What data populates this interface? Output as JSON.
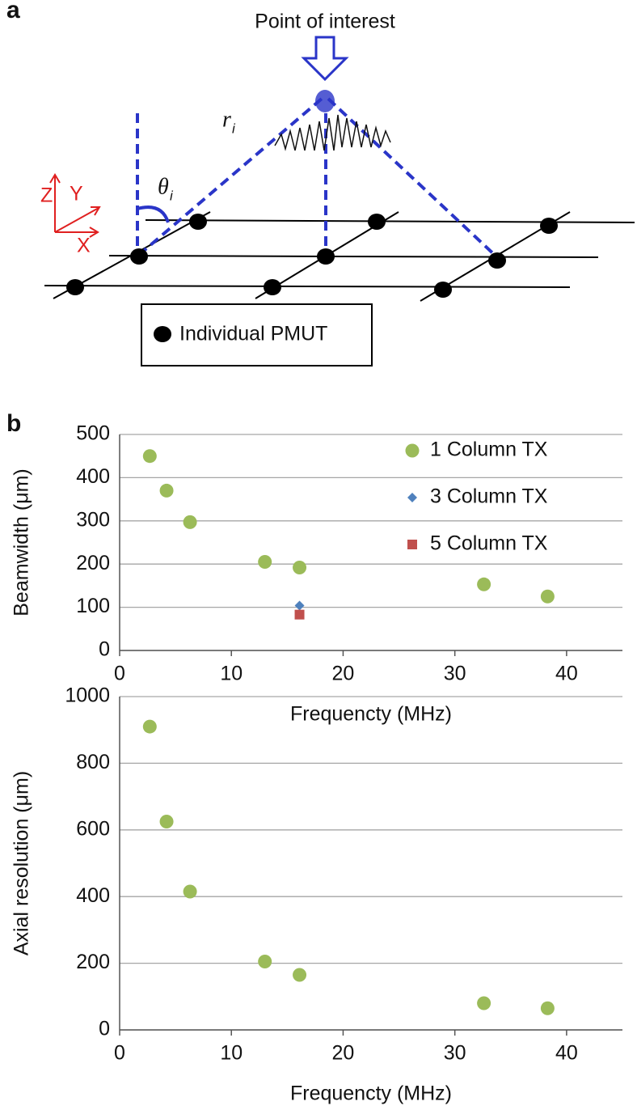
{
  "panel_labels": [
    "a",
    "b"
  ],
  "diagram": {
    "title": "Point of interest",
    "distance": {
      "symbol": "r",
      "subscript": "i"
    },
    "angle": {
      "symbol": "θ",
      "subscript": "i"
    },
    "axes": [
      "Z",
      "Y",
      "X"
    ],
    "legend": "Individual PMUT"
  },
  "chart_data": [
    {
      "type": "scatter",
      "xlabel": "Frequencty (MHz)",
      "ylabel": "Beamwidth (μm)",
      "xlim": [
        0,
        45
      ],
      "xticks": [
        0,
        10,
        20,
        30,
        40
      ],
      "ylim": [
        0,
        500
      ],
      "yticks": [
        0,
        100,
        200,
        300,
        400,
        500
      ],
      "grid": true,
      "legend": "upper right",
      "series": [
        {
          "name": "1 Column TX",
          "color": "#9bbb59",
          "marker": "circle",
          "x": [
            2.7,
            4.2,
            6.3,
            13.0,
            16.1,
            32.6,
            38.3
          ],
          "values": [
            450,
            370,
            297,
            205,
            192,
            153,
            125
          ]
        },
        {
          "name": "3 Column TX",
          "color": "#4f81bd",
          "marker": "diamond",
          "x": [
            16.1
          ],
          "values": [
            104
          ]
        },
        {
          "name": "5 Column TX",
          "color": "#c0504d",
          "marker": "square",
          "x": [
            16.1
          ],
          "values": [
            83
          ]
        }
      ]
    },
    {
      "type": "scatter",
      "xlabel": "Frequencty (MHz)",
      "ylabel": "Axial resolution (μm)",
      "xlim": [
        0,
        45
      ],
      "xticks": [
        0,
        10,
        20,
        30,
        40
      ],
      "ylim": [
        0,
        1000
      ],
      "yticks": [
        0,
        200,
        400,
        600,
        800,
        1000
      ],
      "grid": true,
      "series": [
        {
          "color": "#9bbb59",
          "marker": "circle",
          "x": [
            2.7,
            4.2,
            6.3,
            13.0,
            16.1,
            32.6,
            38.3
          ],
          "values": [
            910,
            625,
            415,
            205,
            165,
            80,
            65
          ]
        }
      ]
    }
  ]
}
